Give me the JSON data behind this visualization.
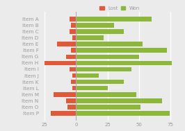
{
  "items": [
    "Item A",
    "Item B",
    "Item C",
    "Item D",
    "Item E",
    "Item F",
    "Item G",
    "Item H",
    "Item I",
    "Item J",
    "Item K",
    "Item L",
    "Item M",
    "Item N",
    "Item O",
    "Item P"
  ],
  "lost": [
    -5,
    -4,
    -5,
    -3,
    -15,
    -4,
    -8,
    -25,
    -5,
    -3,
    -4,
    -3,
    -18,
    -8,
    -7,
    -20
  ],
  "won": [
    60,
    30,
    38,
    22,
    53,
    72,
    50,
    76,
    44,
    18,
    38,
    25,
    48,
    68,
    51,
    74
  ],
  "lost_color": "#e05a3a",
  "won_color": "#8db73a",
  "bg_color": "#ebebeb",
  "grid_color": "#ffffff",
  "text_color": "#999999",
  "legend_lost": "Lost",
  "legend_won": "Won",
  "xlim": [
    -28,
    82
  ],
  "xticks": [
    -25,
    0,
    25,
    50,
    75
  ],
  "tick_fontsize": 5,
  "label_fontsize": 5.2
}
